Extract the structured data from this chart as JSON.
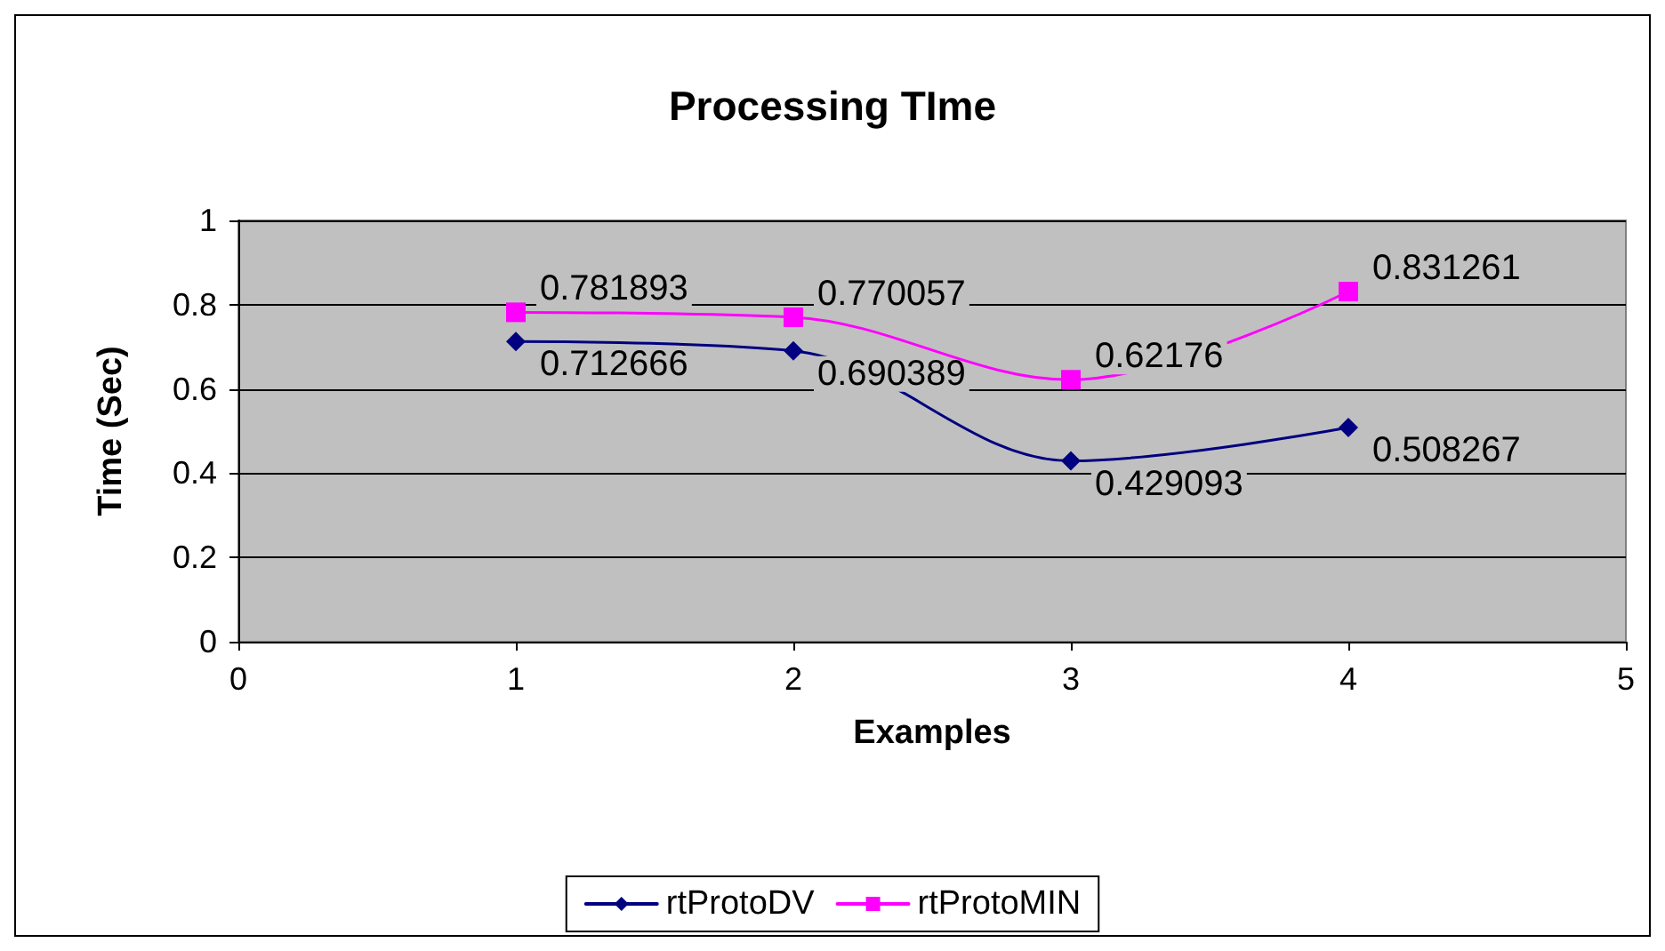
{
  "chart_data": {
    "type": "line",
    "title": "Processing TIme",
    "xlabel": "Examples",
    "ylabel": "Time (Sec)",
    "x": [
      1,
      2,
      3,
      4
    ],
    "series": [
      {
        "name": "rtProtoDV",
        "color": "#000080",
        "marker": "diamond",
        "values": [
          0.712666,
          0.690389,
          0.429093,
          0.508267
        ]
      },
      {
        "name": "rtProtoMIN",
        "color": "#ff00ff",
        "marker": "square",
        "values": [
          0.781893,
          0.770057,
          0.62176,
          0.831261
        ]
      }
    ],
    "xlim": [
      0,
      5
    ],
    "xticks": [
      0,
      1,
      2,
      3,
      4,
      5
    ],
    "ylim": [
      0,
      1
    ],
    "yticks": [
      0,
      0.2,
      0.4,
      0.6,
      0.8,
      1
    ],
    "grid": "y",
    "legend": "bottom",
    "data_labels": true
  }
}
